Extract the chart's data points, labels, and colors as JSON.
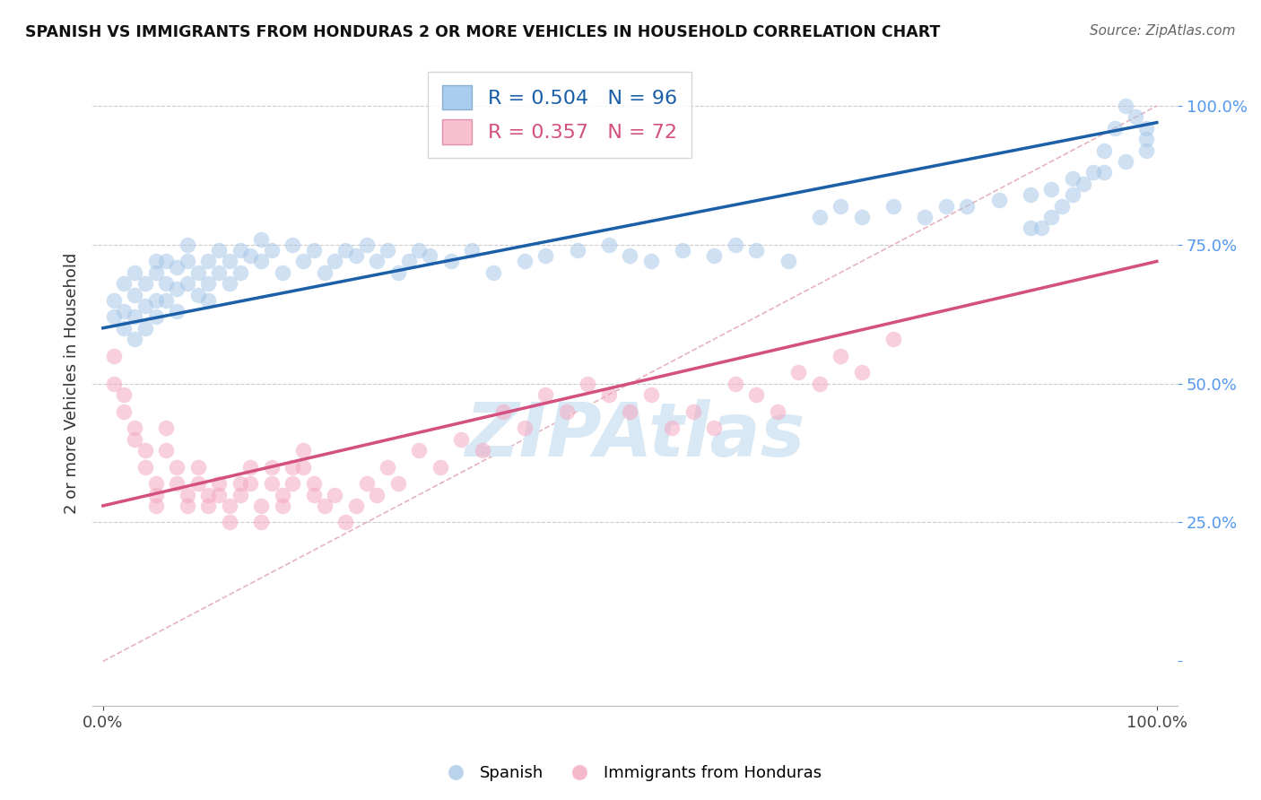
{
  "title": "SPANISH VS IMMIGRANTS FROM HONDURAS 2 OR MORE VEHICLES IN HOUSEHOLD CORRELATION CHART",
  "source": "Source: ZipAtlas.com",
  "ylabel": "2 or more Vehicles in Household",
  "legend1_label": "R = 0.504   N = 96",
  "legend2_label": "R = 0.357   N = 72",
  "blue_color": "#a8c8e8",
  "pink_color": "#f4a8c0",
  "blue_line_color": "#1a5fa8",
  "pink_line_color": "#d45080",
  "ref_line_color": "#e0a0b0",
  "grid_color": "#cccccc",
  "watermark_color": "#d8e8f4",
  "blue_trend_y0": 60,
  "blue_trend_y1": 97,
  "pink_trend_y0": 28,
  "pink_trend_y1": 72,
  "blue_scatter_x": [
    1,
    1,
    2,
    2,
    2,
    3,
    3,
    3,
    3,
    4,
    4,
    4,
    5,
    5,
    5,
    5,
    6,
    6,
    6,
    7,
    7,
    7,
    8,
    8,
    8,
    9,
    9,
    10,
    10,
    10,
    11,
    11,
    12,
    12,
    13,
    13,
    14,
    15,
    15,
    16,
    17,
    18,
    19,
    20,
    21,
    22,
    23,
    24,
    25,
    26,
    27,
    28,
    29,
    30,
    31,
    33,
    35,
    37,
    40,
    42,
    45,
    48,
    50,
    52,
    55,
    58,
    60,
    62,
    65,
    68,
    70,
    72,
    75,
    78,
    80,
    82,
    85,
    88,
    90,
    92,
    95,
    97,
    99,
    99,
    99,
    98,
    97,
    96,
    95,
    94,
    93,
    92,
    91,
    90,
    89,
    88
  ],
  "blue_scatter_y": [
    62,
    65,
    60,
    63,
    68,
    58,
    62,
    66,
    70,
    60,
    64,
    68,
    62,
    65,
    70,
    72,
    65,
    68,
    72,
    63,
    67,
    71,
    68,
    72,
    75,
    66,
    70,
    65,
    68,
    72,
    70,
    74,
    68,
    72,
    70,
    74,
    73,
    72,
    76,
    74,
    70,
    75,
    72,
    74,
    70,
    72,
    74,
    73,
    75,
    72,
    74,
    70,
    72,
    74,
    73,
    72,
    74,
    70,
    72,
    73,
    74,
    75,
    73,
    72,
    74,
    73,
    75,
    74,
    72,
    80,
    82,
    80,
    82,
    80,
    82,
    82,
    83,
    84,
    85,
    87,
    88,
    90,
    92,
    94,
    96,
    98,
    100,
    96,
    92,
    88,
    86,
    84,
    82,
    80,
    78,
    78
  ],
  "pink_scatter_x": [
    1,
    1,
    2,
    2,
    3,
    3,
    4,
    4,
    5,
    5,
    5,
    6,
    6,
    7,
    7,
    8,
    8,
    9,
    9,
    10,
    10,
    11,
    11,
    12,
    12,
    13,
    13,
    14,
    14,
    15,
    15,
    16,
    16,
    17,
    17,
    18,
    18,
    19,
    19,
    20,
    20,
    21,
    22,
    23,
    24,
    25,
    26,
    27,
    28,
    30,
    32,
    34,
    36,
    38,
    40,
    42,
    44,
    46,
    48,
    50,
    52,
    54,
    56,
    58,
    60,
    62,
    64,
    66,
    68,
    70,
    72,
    75
  ],
  "pink_scatter_y": [
    55,
    50,
    45,
    48,
    40,
    42,
    38,
    35,
    32,
    30,
    28,
    42,
    38,
    35,
    32,
    30,
    28,
    35,
    32,
    30,
    28,
    32,
    30,
    28,
    25,
    32,
    30,
    35,
    32,
    28,
    25,
    35,
    32,
    30,
    28,
    35,
    32,
    38,
    35,
    32,
    30,
    28,
    30,
    25,
    28,
    32,
    30,
    35,
    32,
    38,
    35,
    40,
    38,
    45,
    42,
    48,
    45,
    50,
    48,
    45,
    48,
    42,
    45,
    42,
    50,
    48,
    45,
    52,
    50,
    55,
    52,
    58
  ],
  "ytick_positions": [
    0,
    25,
    50,
    75,
    100
  ],
  "ytick_labels": [
    "",
    "25.0%",
    "50.0%",
    "75.0%",
    "100.0%"
  ],
  "ytick_color": "#5599ee",
  "xlim": [
    0,
    100
  ],
  "ylim": [
    0,
    105
  ]
}
